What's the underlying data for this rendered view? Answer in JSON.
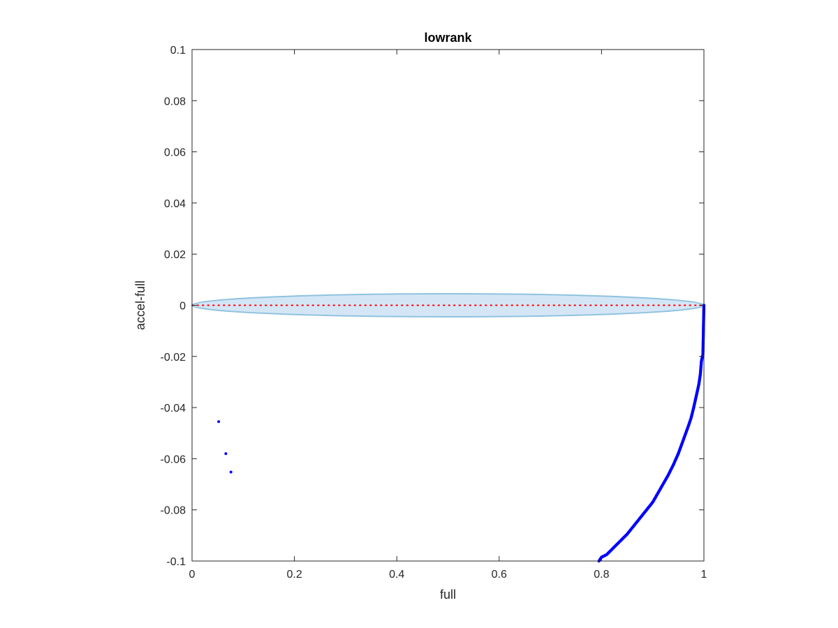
{
  "chart_data": {
    "type": "scatter",
    "title": "lowrank",
    "xlabel": "full",
    "ylabel": "accel-full",
    "xlim": [
      0,
      1
    ],
    "ylim": [
      -0.1,
      0.1
    ],
    "xticks": [
      0,
      0.2,
      0.4,
      0.6,
      0.8,
      1
    ],
    "xtick_labels": [
      "0",
      "0.2",
      "0.4",
      "0.6",
      "0.8",
      "1"
    ],
    "yticks": [
      -0.1,
      -0.08,
      -0.06,
      -0.04,
      -0.02,
      0,
      0.02,
      0.04,
      0.06,
      0.08,
      0.1
    ],
    "ytick_labels": [
      "-0.1",
      "-0.08",
      "-0.06",
      "-0.04",
      "-0.02",
      "0",
      "0.02",
      "0.04",
      "0.06",
      "0.08",
      "0.1"
    ],
    "grid": false,
    "box": true,
    "band": {
      "shape": "ellipse",
      "center": [
        0.5,
        0
      ],
      "x_range": [
        0,
        1
      ],
      "half_height": 0.0045,
      "fill": "#d4e6f6",
      "edge": "#90c2df"
    },
    "zero_line": {
      "y": 0,
      "x_range": [
        0,
        1
      ],
      "color": "#ff0000",
      "style": "dotted"
    },
    "series": [
      {
        "color": "#0000ff",
        "marker": "point",
        "points": [
          {
            "x": 0.052,
            "y": -0.0455
          },
          {
            "x": 0.066,
            "y": -0.058
          },
          {
            "x": 0.076,
            "y": -0.0652
          }
        ]
      },
      {
        "color": "#0000ff",
        "marker": "point",
        "curve": [
          [
            0.795,
            -0.1
          ],
          [
            0.8,
            -0.0985
          ],
          [
            0.81,
            -0.0975
          ],
          [
            0.82,
            -0.0955
          ],
          [
            0.83,
            -0.0935
          ],
          [
            0.84,
            -0.0915
          ],
          [
            0.85,
            -0.0895
          ],
          [
            0.86,
            -0.087
          ],
          [
            0.87,
            -0.0845
          ],
          [
            0.88,
            -0.082
          ],
          [
            0.89,
            -0.0795
          ],
          [
            0.9,
            -0.077
          ],
          [
            0.91,
            -0.0735
          ],
          [
            0.92,
            -0.07
          ],
          [
            0.93,
            -0.0665
          ],
          [
            0.94,
            -0.0625
          ],
          [
            0.95,
            -0.058
          ],
          [
            0.96,
            -0.0525
          ],
          [
            0.97,
            -0.047
          ],
          [
            0.975,
            -0.044
          ],
          [
            0.98,
            -0.04
          ],
          [
            0.985,
            -0.0355
          ],
          [
            0.99,
            -0.031
          ],
          [
            0.993,
            -0.027
          ],
          [
            0.995,
            -0.022
          ],
          [
            0.997,
            -0.02
          ],
          [
            0.998,
            -0.0195
          ],
          [
            0.9985,
            -0.015
          ],
          [
            0.999,
            -0.01
          ],
          [
            0.9995,
            -0.005
          ],
          [
            1.0,
            0.0
          ]
        ]
      }
    ]
  }
}
